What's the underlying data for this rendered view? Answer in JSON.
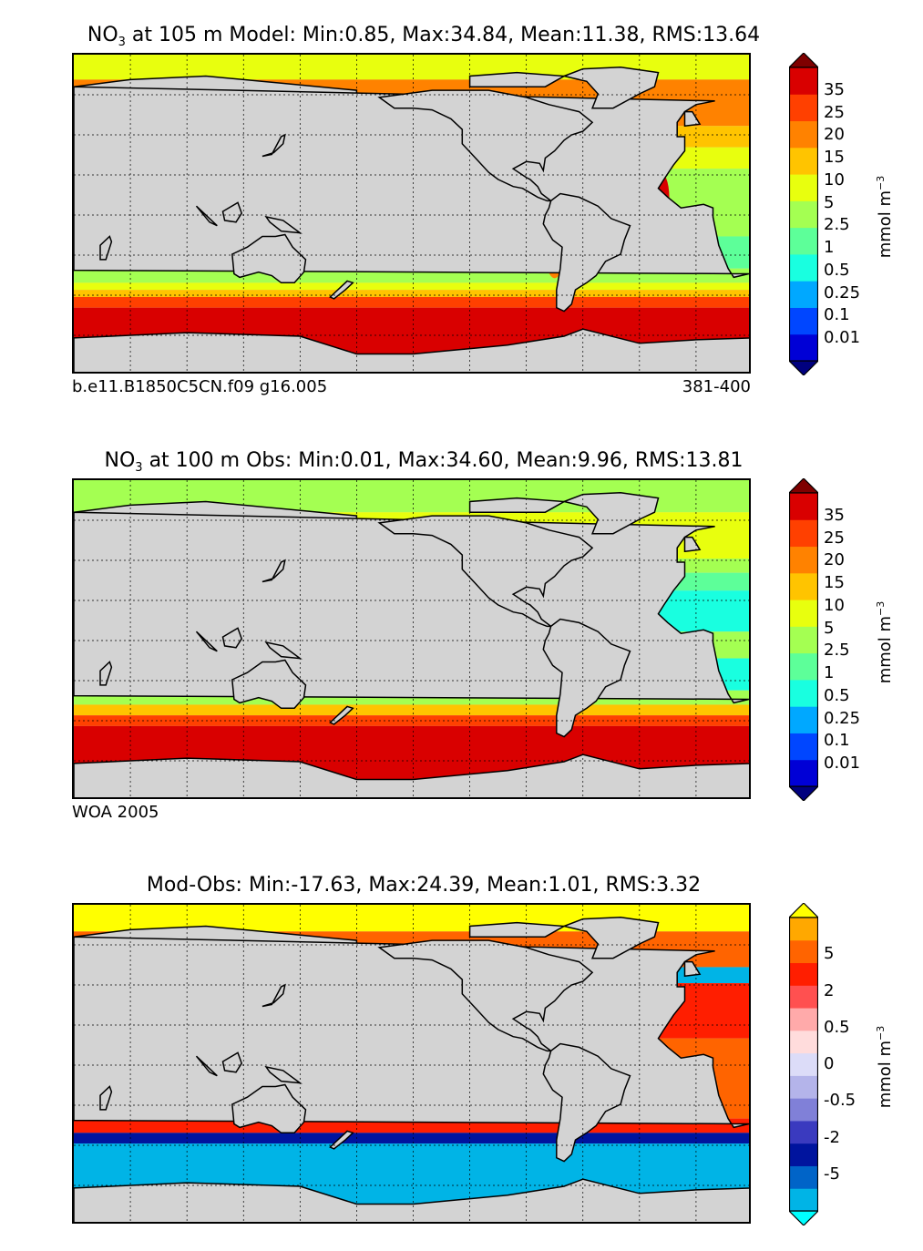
{
  "panels": [
    {
      "title_pre": "NO",
      "title_sub": "3",
      "title_post": " at 105 m Model: Min:0.85, Max:34.84, Mean:11.38, RMS:13.64",
      "footer_left": "b.e11.B1850C5CN.f09 g16.005",
      "footer_right": "381-400",
      "colorbar": {
        "colors": [
          "#00007f",
          "#0000d6",
          "#0046ff",
          "#00a8ff",
          "#19ffe0",
          "#5dff99",
          "#a4ff52",
          "#e8ff0e",
          "#ffc400",
          "#ff8200",
          "#ff4000",
          "#d90000",
          "#7f0000"
        ],
        "ticks": [
          "35",
          "25",
          "20",
          "15",
          "10",
          "5",
          "2.5",
          "1",
          "0.5",
          "0.25",
          "0.1",
          "0.01"
        ],
        "unit_base": "mmol m",
        "unit_sup": "−3"
      }
    },
    {
      "title_pre": "NO",
      "title_sub": "3",
      "title_post": " at 100 m Obs: Min:0.01, Max:34.60, Mean:9.96, RMS:13.81",
      "footer_left": "WOA 2005",
      "footer_right": "",
      "colorbar": {
        "colors": [
          "#00007f",
          "#0000d6",
          "#0046ff",
          "#00a8ff",
          "#19ffe0",
          "#5dff99",
          "#a4ff52",
          "#e8ff0e",
          "#ffc400",
          "#ff8200",
          "#ff4000",
          "#d90000",
          "#7f0000"
        ],
        "ticks": [
          "35",
          "25",
          "20",
          "15",
          "10",
          "5",
          "2.5",
          "1",
          "0.5",
          "0.25",
          "0.1",
          "0.01"
        ],
        "unit_base": "mmol m",
        "unit_sup": "−3"
      }
    },
    {
      "title_pre": "Mod-Obs: Min:-17.63, Max:24.39, Mean:1.01, RMS:3.32",
      "title_sub": "",
      "title_post": "",
      "footer_left": "",
      "footer_right": "",
      "colorbar": {
        "colors": [
          "#00ffff",
          "#00b4e6",
          "#0064c8",
          "#00149e",
          "#3a3abf",
          "#8080d8",
          "#b4b4ea",
          "#dcdcf8",
          "#ffdcdc",
          "#ffaaaa",
          "#ff5050",
          "#ff1e00",
          "#ff6400",
          "#ffa800",
          "#ffff00"
        ],
        "ticks": [
          "5",
          "2",
          "0.5",
          "0",
          "-0.5",
          "-2",
          "-5"
        ],
        "unit_base": "mmol m",
        "unit_sup": "−3"
      }
    }
  ],
  "chart_data": [
    {
      "type": "heatmap",
      "title": "NO3 at 105 m Model: Min:0.85, Max:34.84, Mean:11.38, RMS:13.64",
      "stats": {
        "min": 0.85,
        "max": 34.84,
        "mean": 11.38,
        "rms": 13.64
      },
      "depth_m": 105,
      "levels": [
        0.01,
        0.1,
        0.25,
        0.5,
        1,
        2.5,
        5,
        10,
        15,
        20,
        25,
        35
      ],
      "unit": "mmol m^-3",
      "grid": true
    },
    {
      "type": "heatmap",
      "title": "NO3 at 100 m Obs: Min:0.01, Max:34.60, Mean:9.96, RMS:13.81",
      "stats": {
        "min": 0.01,
        "max": 34.6,
        "mean": 9.96,
        "rms": 13.81
      },
      "depth_m": 100,
      "levels": [
        0.01,
        0.1,
        0.25,
        0.5,
        1,
        2.5,
        5,
        10,
        15,
        20,
        25,
        35
      ],
      "unit": "mmol m^-3",
      "grid": true
    },
    {
      "type": "heatmap",
      "title": "Mod-Obs: Min:-17.63, Max:24.39, Mean:1.01, RMS:3.32",
      "stats": {
        "min": -17.63,
        "max": 24.39,
        "mean": 1.01,
        "rms": 3.32
      },
      "levels": [
        -5,
        -2,
        -0.5,
        0,
        0.5,
        2,
        5
      ],
      "unit": "mmol m^-3",
      "grid": true
    }
  ]
}
